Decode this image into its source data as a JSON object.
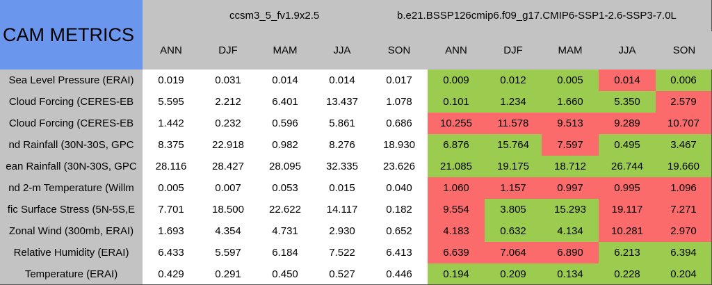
{
  "header": {
    "title": "CAM METRICS",
    "groups": [
      {
        "name": "ccsm3_5_fv1.9x2.5",
        "seasons": [
          "ANN",
          "DJF",
          "MAM",
          "JJA",
          "SON"
        ]
      },
      {
        "name": "b.e21.BSSP126cmip6.f09_g17.CMIP6-SSP1-2.6-SSP3-7.0L",
        "seasons": [
          "ANN",
          "DJF",
          "MAM",
          "JJA",
          "SON"
        ]
      }
    ]
  },
  "table": {
    "rows": [
      {
        "label": "Sea Level Pressure (ERAI)",
        "model1": [
          "0.019",
          "0.031",
          "0.014",
          "0.014",
          "0.017"
        ],
        "model2": [
          "0.009",
          "0.012",
          "0.005",
          "0.014",
          "0.006"
        ],
        "model2_colors": [
          "#9bcc4f",
          "#9bcc4f",
          "#9bcc4f",
          "#fb6b6b",
          "#9bcc4f"
        ]
      },
      {
        "label": "Cloud Forcing (CERES-EB",
        "model1": [
          "5.595",
          "2.212",
          "6.401",
          "13.437",
          "1.078"
        ],
        "model2": [
          "0.101",
          "1.234",
          "1.660",
          "5.350",
          "2.579"
        ],
        "model2_colors": [
          "#9bcc4f",
          "#9bcc4f",
          "#9bcc4f",
          "#9bcc4f",
          "#fb6b6b"
        ]
      },
      {
        "label": "Cloud Forcing (CERES-EB",
        "model1": [
          "1.442",
          "0.232",
          "0.596",
          "5.861",
          "0.686"
        ],
        "model2": [
          "10.255",
          "11.578",
          "9.513",
          "9.289",
          "10.707"
        ],
        "model2_colors": [
          "#fb6b6b",
          "#fb6b6b",
          "#fb6b6b",
          "#fb6b6b",
          "#fb6b6b"
        ]
      },
      {
        "label": "nd Rainfall (30N-30S, GPC",
        "model1": [
          "8.375",
          "22.918",
          "0.982",
          "8.276",
          "18.930"
        ],
        "model2": [
          "6.876",
          "15.764",
          "7.597",
          "0.495",
          "3.467"
        ],
        "model2_colors": [
          "#9bcc4f",
          "#9bcc4f",
          "#fb6b6b",
          "#9bcc4f",
          "#9bcc4f"
        ]
      },
      {
        "label": "ean Rainfall (30N-30S, GPC",
        "model1": [
          "28.116",
          "28.427",
          "28.095",
          "32.335",
          "23.626"
        ],
        "model2": [
          "21.085",
          "19.175",
          "18.712",
          "26.744",
          "19.660"
        ],
        "model2_colors": [
          "#9bcc4f",
          "#9bcc4f",
          "#9bcc4f",
          "#9bcc4f",
          "#9bcc4f"
        ]
      },
      {
        "label": "nd 2-m Temperature (Willm",
        "model1": [
          "0.005",
          "0.007",
          "0.053",
          "0.015",
          "0.040"
        ],
        "model2": [
          "1.060",
          "1.157",
          "0.997",
          "0.995",
          "1.096"
        ],
        "model2_colors": [
          "#fb6b6b",
          "#fb6b6b",
          "#fb6b6b",
          "#fb6b6b",
          "#fb6b6b"
        ]
      },
      {
        "label": "fic Surface Stress (5N-5S,E",
        "model1": [
          "7.701",
          "18.500",
          "22.622",
          "14.117",
          "0.182"
        ],
        "model2": [
          "9.554",
          "3.805",
          "15.293",
          "19.117",
          "7.271"
        ],
        "model2_colors": [
          "#fb6b6b",
          "#9bcc4f",
          "#9bcc4f",
          "#fb6b6b",
          "#fb6b6b"
        ]
      },
      {
        "label": "Zonal Wind (300mb, ERAI)",
        "model1": [
          "1.693",
          "4.354",
          "4.731",
          "2.930",
          "0.652"
        ],
        "model2": [
          "4.183",
          "0.632",
          "4.134",
          "10.281",
          "2.970"
        ],
        "model2_colors": [
          "#fb6b6b",
          "#9bcc4f",
          "#9bcc4f",
          "#fb6b6b",
          "#fb6b6b"
        ]
      },
      {
        "label": "Relative Humidity (ERAI)",
        "model1": [
          "6.433",
          "5.597",
          "6.184",
          "7.522",
          "6.413"
        ],
        "model2": [
          "6.639",
          "7.064",
          "6.890",
          "6.213",
          "6.394"
        ],
        "model2_colors": [
          "#fb6b6b",
          "#fb6b6b",
          "#fb6b6b",
          "#9bcc4f",
          "#9bcc4f"
        ]
      },
      {
        "label": "Temperature (ERAI)",
        "model1": [
          "0.429",
          "0.291",
          "0.450",
          "0.527",
          "0.446"
        ],
        "model2": [
          "0.194",
          "0.209",
          "0.134",
          "0.228",
          "0.204"
        ],
        "model2_colors": [
          "#9bcc4f",
          "#9bcc4f",
          "#9bcc4f",
          "#9bcc4f",
          "#9bcc4f"
        ]
      }
    ]
  }
}
